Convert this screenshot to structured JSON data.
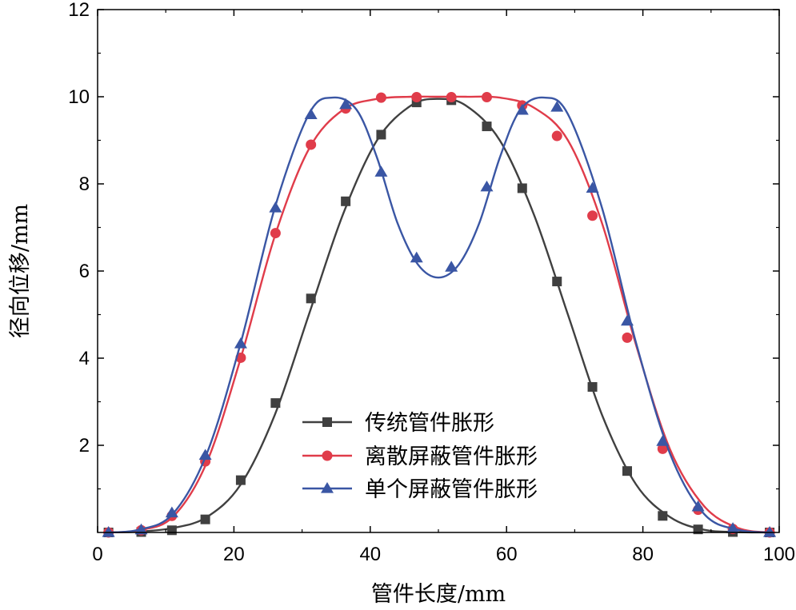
{
  "chart_data": {
    "type": "line",
    "title": "",
    "xlabel": "管件长度/mm",
    "ylabel": "径向位移/mm",
    "xlim": [
      0,
      100
    ],
    "ylim": [
      0,
      12
    ],
    "xticks": [
      0,
      20,
      40,
      60,
      80,
      100
    ],
    "yticks": [
      2,
      4,
      6,
      8,
      10,
      12
    ],
    "xtick_labels": [
      "0",
      "20",
      "40",
      "60",
      "80",
      "100"
    ],
    "ytick_labels": [
      "2",
      "4",
      "6",
      "8",
      "10",
      "12"
    ],
    "legend_position": "bottom-center",
    "series": [
      {
        "name": "传统管件胀形",
        "color": "#404040",
        "marker": "square",
        "curve_x": [
          1.6,
          6,
          11,
          16,
          21,
          26,
          31,
          36,
          41,
          46,
          50,
          54,
          59,
          64,
          69,
          74,
          79,
          84,
          89,
          94,
          98.6
        ],
        "curve_y": [
          0,
          0.02,
          0.1,
          0.35,
          1.1,
          2.7,
          5.0,
          7.3,
          9.0,
          9.8,
          9.95,
          9.8,
          9.0,
          7.3,
          5.0,
          2.7,
          1.1,
          0.35,
          0.06,
          0.01,
          0
        ],
        "marker_x": [
          1.6,
          6.4,
          10.9,
          15.8,
          21.0,
          26.1,
          31.3,
          36.4,
          41.6,
          46.8,
          51.9,
          57.1,
          62.3,
          67.4,
          72.6,
          77.7,
          82.9,
          88.1,
          93.2,
          98.6
        ],
        "marker_y": [
          0,
          0.01,
          0.05,
          0.3,
          1.2,
          2.97,
          5.37,
          7.6,
          9.13,
          9.87,
          9.92,
          9.32,
          7.9,
          5.76,
          3.34,
          1.41,
          0.38,
          0.07,
          0.01,
          0
        ]
      },
      {
        "name": "离散屏蔽管件胀形",
        "color": "#e03c4a",
        "marker": "circle",
        "curve_x": [
          1.6,
          6,
          11,
          16,
          21,
          26,
          31,
          36,
          41,
          46,
          50,
          54,
          59,
          64,
          69,
          74,
          79,
          84,
          89,
          94,
          98.6
        ],
        "curve_y": [
          0,
          0.05,
          0.35,
          1.6,
          4.0,
          6.8,
          8.8,
          9.7,
          9.95,
          10,
          10,
          10,
          9.98,
          9.75,
          9.0,
          7.1,
          4.3,
          1.9,
          0.6,
          0.1,
          0
        ],
        "marker_x": [
          1.6,
          6.4,
          10.9,
          15.8,
          21.0,
          26.1,
          31.3,
          36.4,
          41.6,
          46.8,
          51.9,
          57.1,
          62.3,
          67.4,
          72.6,
          77.7,
          82.9,
          88.1,
          93.2,
          98.6
        ],
        "marker_y": [
          0,
          0.05,
          0.38,
          1.63,
          4.01,
          6.87,
          8.9,
          9.73,
          9.98,
          9.99,
          9.99,
          9.99,
          9.8,
          9.1,
          7.27,
          4.47,
          1.92,
          0.52,
          0.08,
          0
        ]
      },
      {
        "name": "单个屏蔽管件胀形",
        "color": "#3a56a4",
        "marker": "triangle",
        "curve_x": [
          1.6,
          6,
          11,
          16,
          21,
          26,
          31,
          34.5,
          38,
          41,
          44,
          47,
          50,
          53,
          56,
          59,
          62,
          65.5,
          69,
          74,
          79,
          84,
          89,
          94,
          98.6
        ],
        "curve_y": [
          0,
          0.06,
          0.42,
          1.8,
          4.35,
          7.45,
          9.6,
          9.98,
          9.7,
          8.6,
          7.1,
          6.15,
          5.85,
          6.15,
          7.1,
          8.6,
          9.7,
          9.98,
          9.6,
          7.45,
          4.35,
          1.8,
          0.42,
          0.06,
          0
        ],
        "marker_x": [
          1.6,
          6.4,
          10.9,
          15.8,
          21.0,
          26.1,
          31.3,
          36.4,
          41.6,
          46.8,
          51.9,
          57.1,
          62.3,
          67.4,
          72.6,
          77.7,
          82.9,
          88.1,
          93.2,
          98.6
        ],
        "marker_y": [
          0,
          0.06,
          0.45,
          1.77,
          4.33,
          7.45,
          9.59,
          9.82,
          8.27,
          6.3,
          6.09,
          7.93,
          9.69,
          9.76,
          7.9,
          4.85,
          2.09,
          0.59,
          0.09,
          0
        ]
      }
    ]
  }
}
